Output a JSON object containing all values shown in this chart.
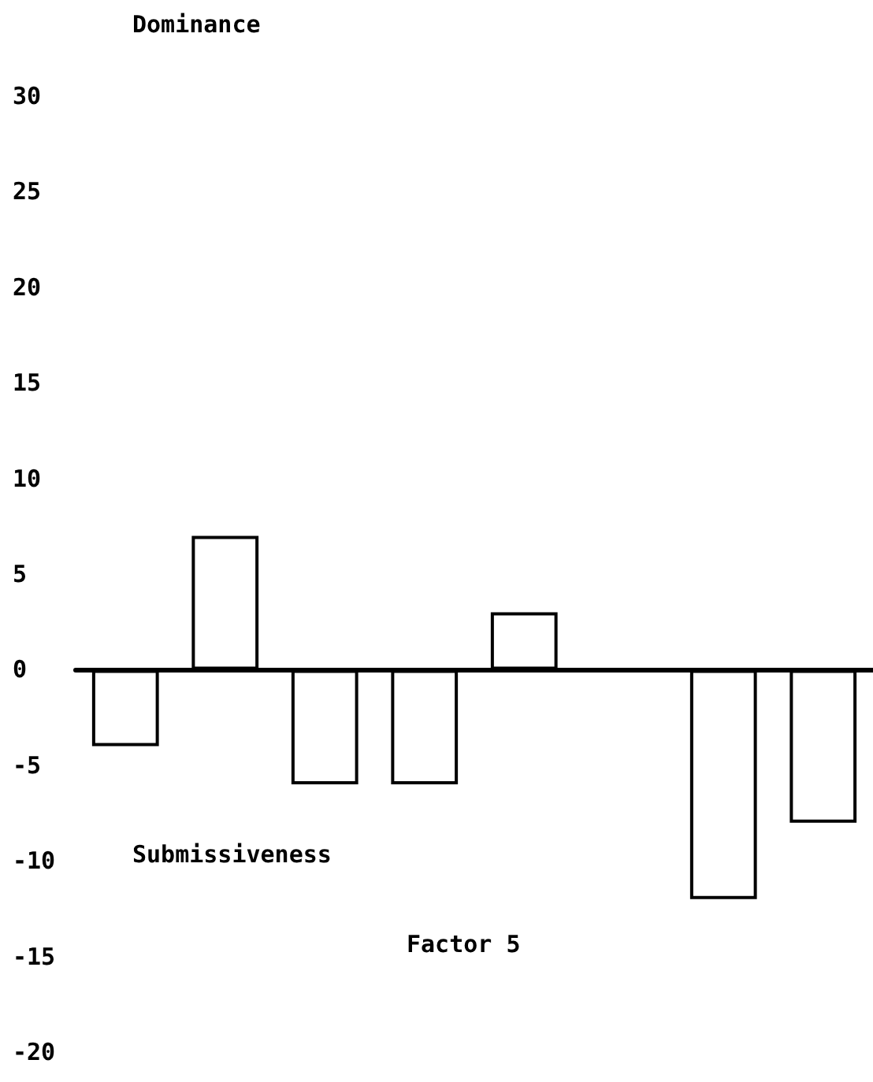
{
  "chart_data": {
    "type": "bar",
    "xlabel": "Factor 5",
    "ylabel": "Dominance",
    "annotations": [
      "Submissiveness"
    ],
    "categories": [
      null,
      null,
      null,
      null,
      null,
      null,
      null,
      null
    ],
    "values": [
      -4,
      7,
      -6,
      -6,
      3,
      null,
      -12,
      -8
    ],
    "color": "#ffffff",
    "ylim": [
      -20,
      30
    ],
    "yticks": [
      -20,
      -15,
      -10,
      -5,
      0,
      5,
      10,
      15,
      20,
      25,
      30
    ],
    "tick_labels": "y"
  }
}
